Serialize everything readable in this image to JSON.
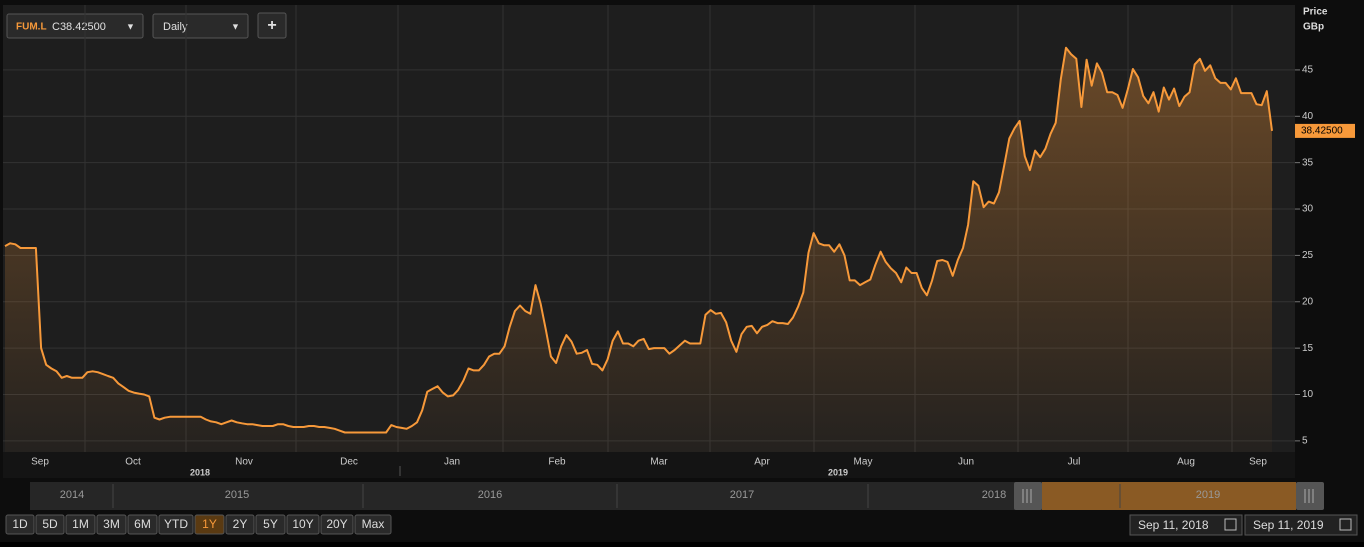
{
  "header": {
    "ticker": "FUM.L",
    "quote": "C38.42500",
    "interval": "Daily",
    "add": "+"
  },
  "chart_data": {
    "type": "area",
    "y_axis_title": [
      "Price",
      "GBp"
    ],
    "series": [
      {
        "name": "FUM.L",
        "color": "#f7993a",
        "values": [
          26,
          26.3,
          26.2,
          25.8,
          25.8,
          25.8,
          25.8,
          15,
          13.2,
          12.8,
          12.5,
          11.8,
          12,
          11.8,
          11.8,
          11.8,
          12.4,
          12.5,
          12.4,
          12.2,
          12,
          11.8,
          11.2,
          10.8,
          10.4,
          10.2,
          10.1,
          10,
          9.8,
          7.5,
          7.3,
          7.5,
          7.6,
          7.6,
          7.6,
          7.6,
          7.6,
          7.6,
          7.6,
          7.3,
          7.1,
          7,
          6.8,
          7,
          7.2,
          7,
          6.9,
          6.8,
          6.8,
          6.7,
          6.6,
          6.6,
          6.6,
          6.8,
          6.8,
          6.6,
          6.5,
          6.5,
          6.5,
          6.6,
          6.6,
          6.5,
          6.5,
          6.4,
          6.3,
          6.1,
          5.9,
          5.9,
          5.9,
          5.9,
          5.9,
          5.9,
          5.9,
          5.9,
          5.9,
          6.7,
          6.5,
          6.4,
          6.3,
          6.6,
          7,
          8.3,
          10.3,
          10.6,
          10.9,
          10.2,
          9.8,
          9.9,
          10.5,
          11.5,
          12.8,
          12.6,
          12.6,
          13.2,
          14.1,
          14.4,
          14.4,
          15.2,
          17.3,
          19,
          19.6,
          19,
          18.7,
          21.8,
          19.8,
          17,
          14.1,
          13.4,
          15.2,
          16.4,
          15.7,
          14.4,
          14.5,
          14.8,
          13.3,
          13.2,
          12.6,
          13.8,
          15.8,
          16.8,
          15.5,
          15.5,
          15.2,
          15.8,
          16,
          14.9,
          15,
          15,
          15,
          14.4,
          14.8,
          15.3,
          15.8,
          15.5,
          15.5,
          15.5,
          18.6,
          19.1,
          18.7,
          18.8,
          17.8,
          15.8,
          14.6,
          16.5,
          17.3,
          17.4,
          16.6,
          17.3,
          17.5,
          17.9,
          17.7,
          17.7,
          17.6,
          18.3,
          19.5,
          21,
          25.3,
          27.4,
          26.3,
          26.1,
          26.1,
          25.4,
          26.2,
          25,
          22.3,
          22.3,
          21.8,
          22.1,
          22.4,
          24,
          25.4,
          24.3,
          23.6,
          23.1,
          22.1,
          23.7,
          23.1,
          23.1,
          21.5,
          20.7,
          22.3,
          24.4,
          24.5,
          24.3,
          22.8,
          24.5,
          25.8,
          28.3,
          33,
          32.5,
          30.2,
          30.8,
          30.6,
          31.8,
          34.7,
          37.6,
          38.7,
          39.5,
          35.7,
          34.2,
          36.3,
          35.6,
          36.5,
          38.1,
          39.3,
          44,
          47.4,
          46.7,
          46.2,
          41,
          46.1,
          43.3,
          45.7,
          44.7,
          42.6,
          42.6,
          42.3,
          40.9,
          42.9,
          45.1,
          44.2,
          42.2,
          41.4,
          42.6,
          40.5,
          43.1,
          41.8,
          43,
          41.1,
          42.1,
          42.6,
          45.6,
          46.2,
          44.9,
          45.5,
          44.1,
          43.6,
          43.6,
          42.9,
          44.1,
          42.5,
          42.5,
          42.5,
          41.3,
          41.2,
          42.7,
          38.425
        ]
      }
    ],
    "last_price": {
      "value": 38.425,
      "label": "38.42500"
    },
    "ylim": [
      3.8,
      52
    ],
    "yticks": [
      5,
      10,
      15,
      20,
      25,
      30,
      35,
      40,
      45
    ],
    "grid": true,
    "x_labels": [
      "Sep",
      "Oct",
      "Nov",
      "Dec",
      "Jan",
      "Feb",
      "Mar",
      "Apr",
      "May",
      "Jun",
      "Jul",
      "Aug",
      "Sep"
    ],
    "year_labels": [
      "2018",
      "2019"
    ]
  },
  "navigator": {
    "years": [
      "2014",
      "2015",
      "2016",
      "2017",
      "2018",
      "2019"
    ]
  },
  "ranges": [
    "1D",
    "5D",
    "1M",
    "3M",
    "6M",
    "YTD",
    "1Y",
    "2Y",
    "5Y",
    "10Y",
    "20Y",
    "Max"
  ],
  "active_range": "1Y",
  "dates": [
    "Sep 11, 2018",
    "Sep 11, 2019"
  ]
}
